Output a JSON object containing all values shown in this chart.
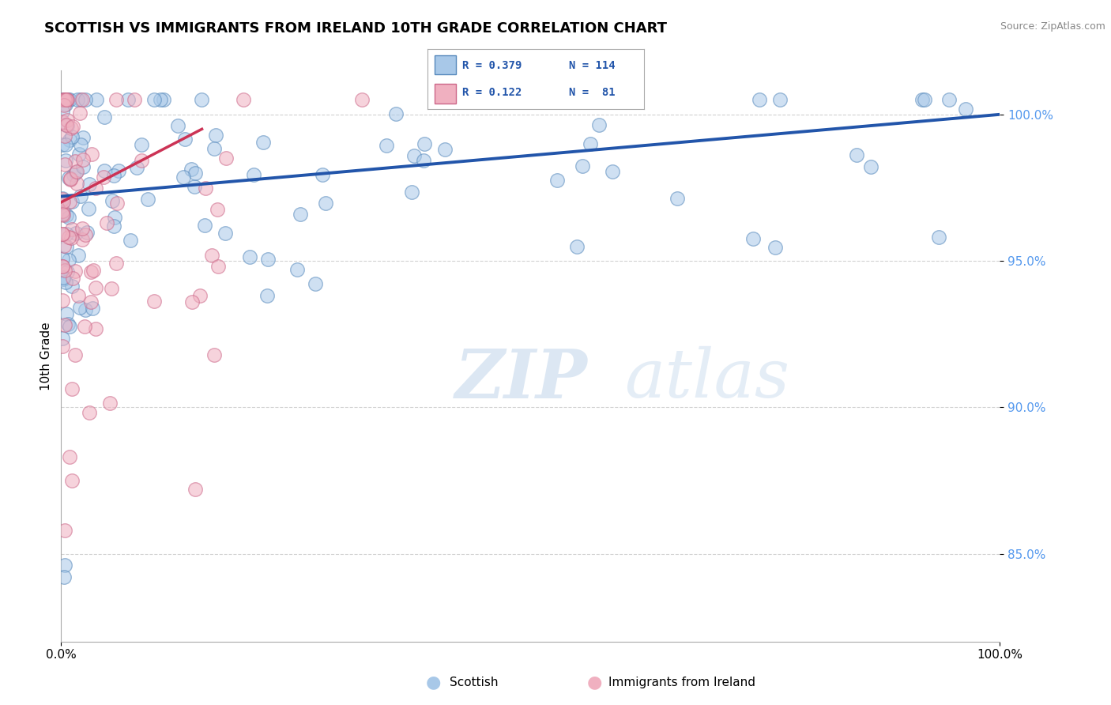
{
  "title": "SCOTTISH VS IMMIGRANTS FROM IRELAND 10TH GRADE CORRELATION CHART",
  "source": "Source: ZipAtlas.com",
  "ylabel": "10th Grade",
  "xlim": [
    0.0,
    100.0
  ],
  "ylim": [
    82.0,
    101.5
  ],
  "yticks": [
    85.0,
    90.0,
    95.0,
    100.0
  ],
  "ytick_labels": [
    "85.0%",
    "90.0%",
    "95.0%",
    "100.0%"
  ],
  "legend_r_blue": "R = 0.379",
  "legend_n_blue": "N = 114",
  "legend_r_pink": "R = 0.122",
  "legend_n_pink": "N =  81",
  "blue_color": "#a8c8e8",
  "blue_edge_color": "#5588bb",
  "blue_line_color": "#2255aa",
  "pink_color": "#f0b0c0",
  "pink_edge_color": "#cc6688",
  "pink_line_color": "#cc3355",
  "background_color": "#ffffff",
  "ytick_color": "#5599ee",
  "grid_color": "#cccccc",
  "title_fontsize": 13,
  "source_fontsize": 9,
  "tick_fontsize": 11,
  "legend_fontsize": 11,
  "ylabel_fontsize": 11,
  "scatter_size": 160,
  "scatter_alpha": 0.55,
  "scatter_lw": 1.0,
  "blue_trend_start_x": 0,
  "blue_trend_end_x": 100,
  "blue_trend_start_y": 97.2,
  "blue_trend_end_y": 100.0,
  "pink_trend_start_x": 0,
  "pink_trend_end_x": 15,
  "pink_trend_start_y": 97.0,
  "pink_trend_end_y": 99.5
}
